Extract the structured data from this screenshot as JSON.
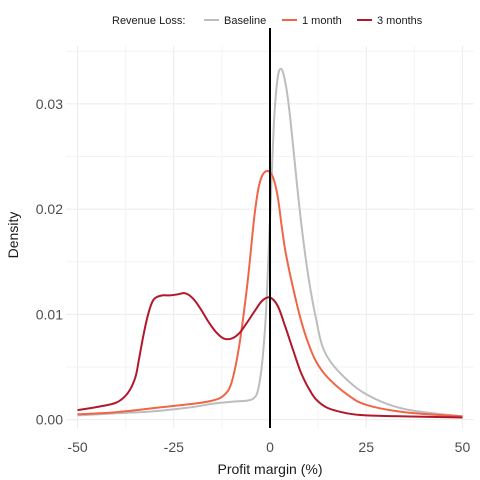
{
  "chart_data": {
    "type": "line",
    "title": "",
    "xlabel": "Profit margin (%)",
    "ylabel": "Density",
    "xlim": [
      -53,
      53
    ],
    "ylim": [
      -0.0008,
      0.0355
    ],
    "xticks": [
      -50,
      -25,
      0,
      25,
      50
    ],
    "xtick_labels": [
      "-50",
      "-25",
      "0",
      "25",
      "50"
    ],
    "yticks": [
      0.0,
      0.01,
      0.02,
      0.03
    ],
    "ytick_labels": [
      "0.00",
      "0.01",
      "0.02",
      "0.03"
    ],
    "grid": true,
    "reference_line_x": 0,
    "legend": {
      "title": "Revenue Loss:",
      "position": "top"
    },
    "series": [
      {
        "name": "Baseline",
        "color": "#bdbdbd",
        "x": [
          -50,
          -40,
          -30,
          -20,
          -15,
          -10,
          -6,
          -4,
          -3,
          -2,
          -1,
          0,
          1,
          2,
          3,
          4,
          5,
          6,
          8,
          10,
          12,
          14,
          18,
          25,
          35,
          50
        ],
        "y": [
          0.0004,
          0.0006,
          0.0008,
          0.0012,
          0.0015,
          0.0017,
          0.0018,
          0.0021,
          0.003,
          0.0055,
          0.0105,
          0.019,
          0.028,
          0.0325,
          0.0333,
          0.032,
          0.0295,
          0.026,
          0.019,
          0.0135,
          0.0095,
          0.0066,
          0.0045,
          0.0024,
          0.001,
          0.0003
        ]
      },
      {
        "name": "1 month",
        "color": "#ef6548",
        "x": [
          -50,
          -40,
          -30,
          -20,
          -15,
          -12,
          -10,
          -8,
          -6,
          -5,
          -4,
          -3,
          -2,
          -1,
          0,
          1,
          2,
          3,
          4,
          6,
          8,
          10,
          12,
          15,
          20,
          25,
          35,
          50
        ],
        "y": [
          0.0005,
          0.0007,
          0.0011,
          0.0015,
          0.0018,
          0.0023,
          0.0035,
          0.007,
          0.0125,
          0.016,
          0.0195,
          0.022,
          0.0232,
          0.0236,
          0.0235,
          0.0228,
          0.0212,
          0.0185,
          0.016,
          0.0125,
          0.0095,
          0.0072,
          0.0055,
          0.004,
          0.0024,
          0.0014,
          0.0007,
          0.0003
        ]
      },
      {
        "name": "3 months",
        "color": "#b2182b",
        "x": [
          -50,
          -45,
          -40,
          -37,
          -35,
          -34,
          -33,
          -32,
          -31,
          -30,
          -28,
          -26,
          -24,
          -22,
          -20,
          -18,
          -16,
          -14,
          -12,
          -10,
          -8,
          -6,
          -4,
          -2,
          0,
          2,
          4,
          6,
          8,
          10,
          12,
          15,
          20,
          25,
          35,
          50
        ],
        "y": [
          0.0009,
          0.0012,
          0.0016,
          0.0025,
          0.004,
          0.0058,
          0.0078,
          0.0095,
          0.0108,
          0.0115,
          0.0118,
          0.0118,
          0.0119,
          0.012,
          0.0115,
          0.0105,
          0.0093,
          0.0083,
          0.0077,
          0.0077,
          0.0082,
          0.0092,
          0.0103,
          0.0113,
          0.0116,
          0.0108,
          0.0088,
          0.0066,
          0.0045,
          0.003,
          0.0019,
          0.0011,
          0.0006,
          0.0004,
          0.0003,
          0.0002
        ]
      }
    ]
  }
}
